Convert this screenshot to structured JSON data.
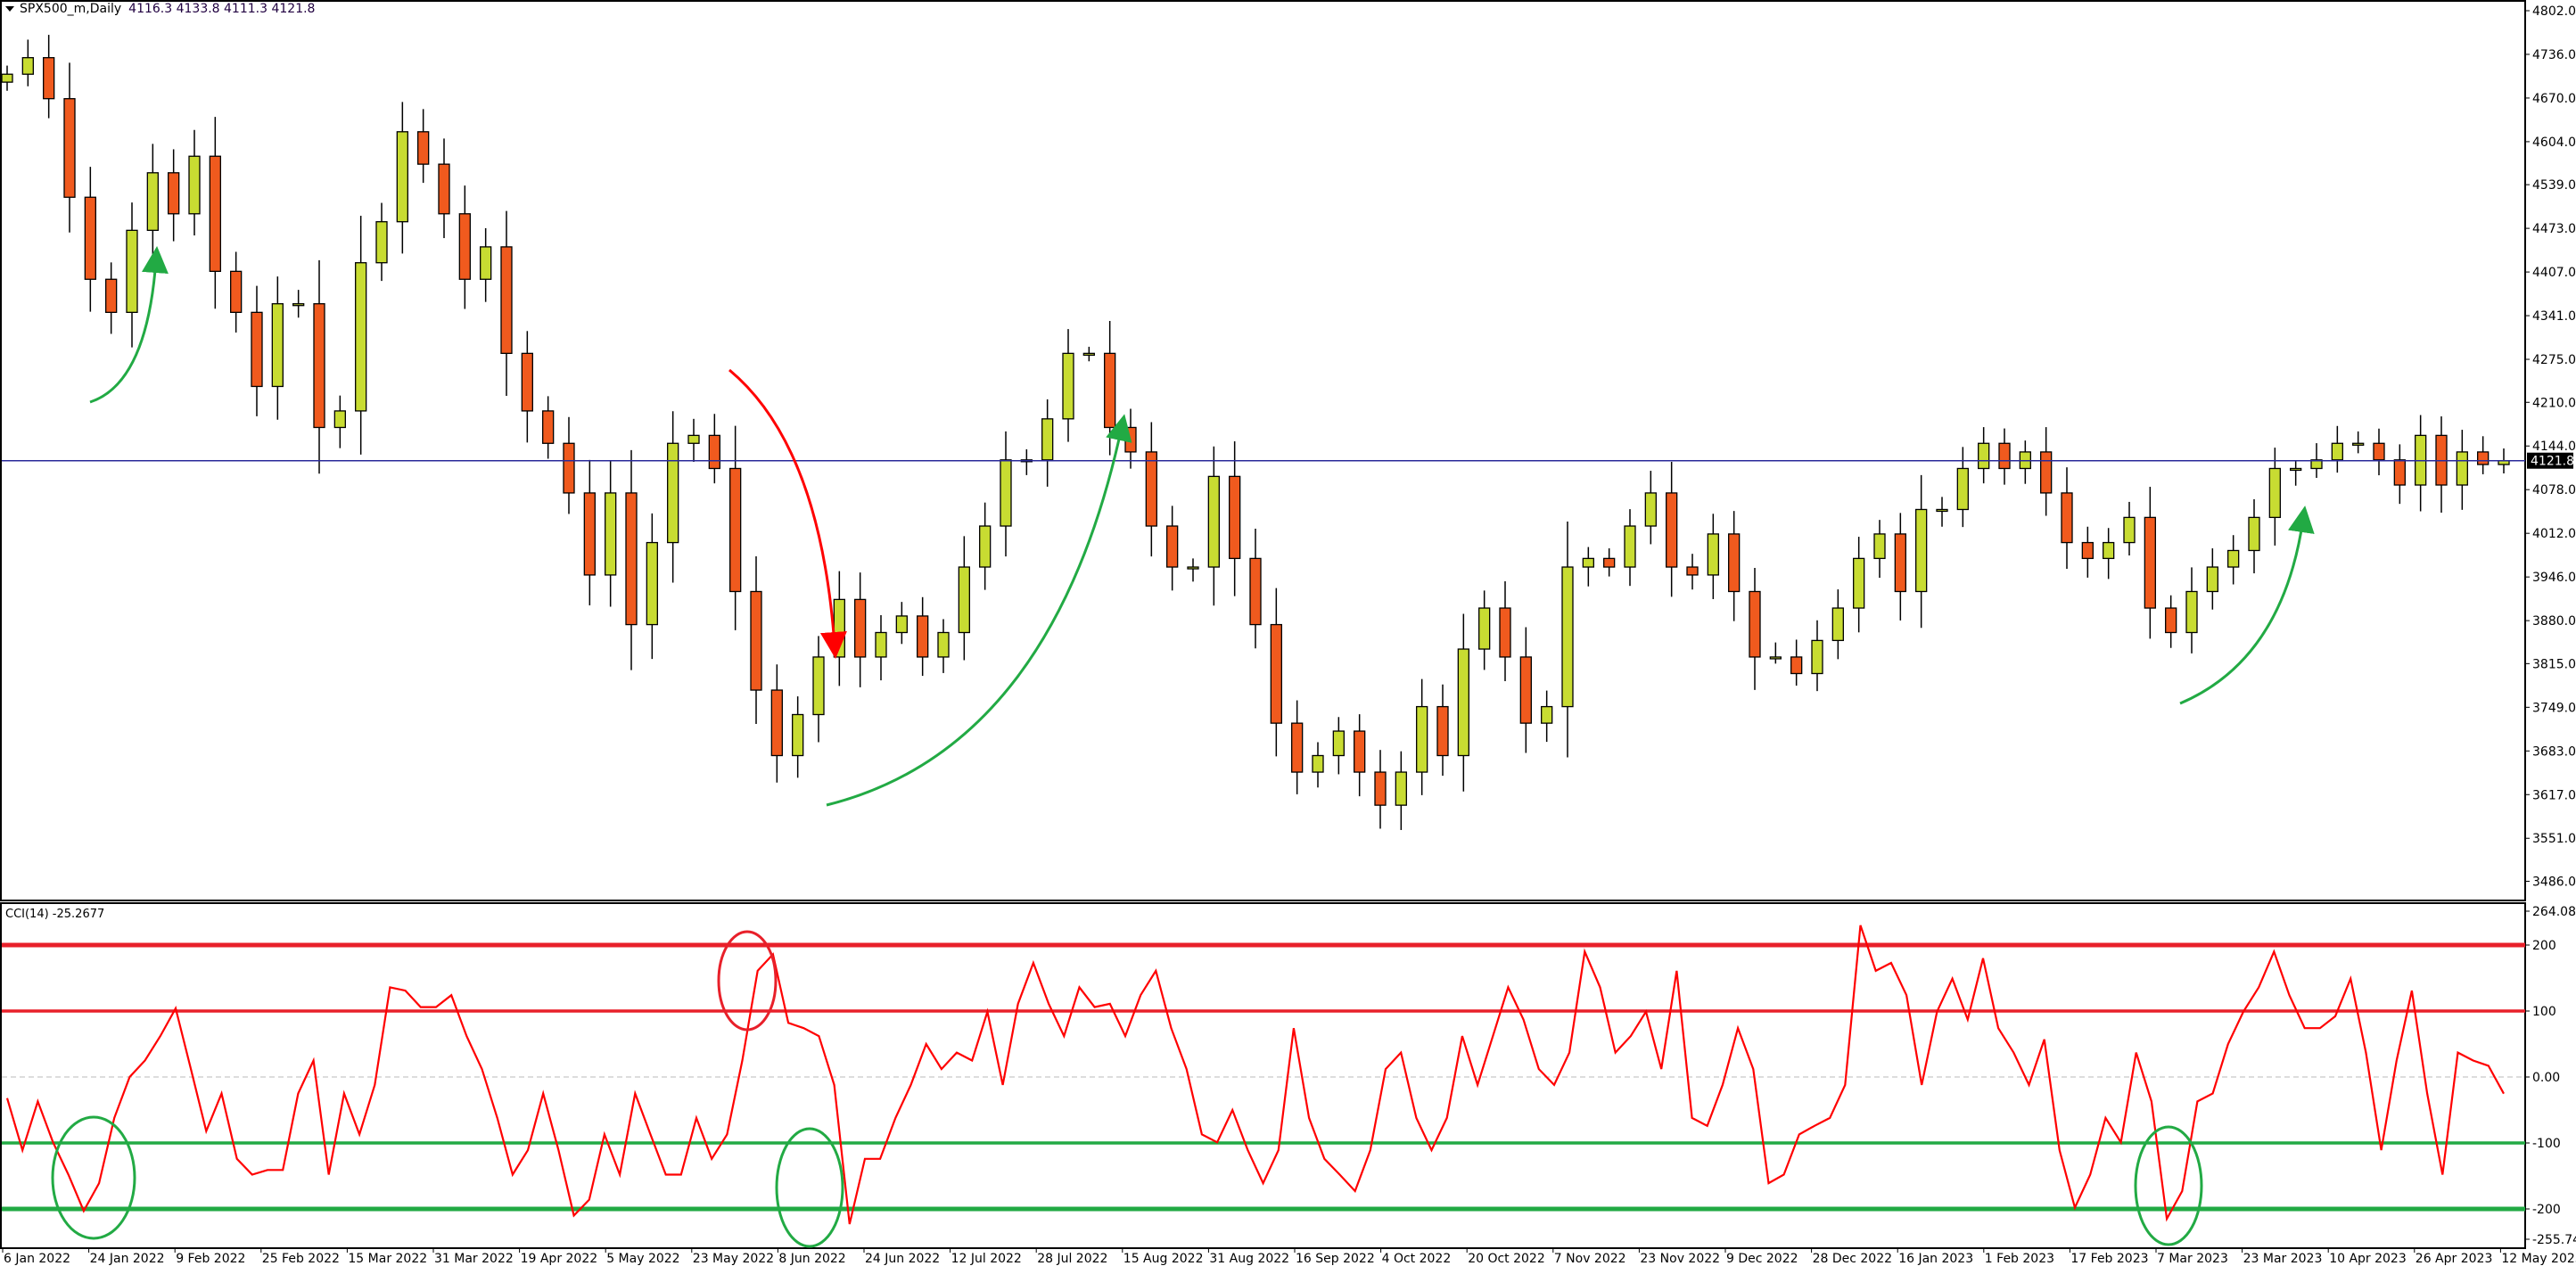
{
  "header": {
    "symbol": "SPX500_m,Daily",
    "ohlc": "4116.3 4133.8 4111.3 4121.8"
  },
  "indicator": {
    "label": "CCI(14) -25.2677"
  },
  "colors": {
    "bull": "#c8dc32",
    "bear": "#f05a1e",
    "price_line": "#2a2a9a",
    "cci": "#ff0000",
    "overbought": "#e8202a",
    "oversold": "#22aa44",
    "arrow_red": "#ff0000",
    "arrow_green": "#22aa44"
  },
  "chart_data": [
    {
      "type": "candlestick",
      "title": "SPX500_m,Daily",
      "current_price": 4121.8,
      "current_price_label": "4121.8",
      "ylim": [
        3456,
        4818
      ],
      "y_ticks": [
        "4802.0",
        "4736.0",
        "4670.0",
        "4604.0",
        "4539.0",
        "4473.0",
        "4407.0",
        "4341.0",
        "4275.0",
        "4210.0",
        "4144.0",
        "4078.0",
        "4012.0",
        "3946.0",
        "3880.0",
        "3815.0",
        "3749.0",
        "3683.0",
        "3617.0",
        "3551.0",
        "3486.0"
      ],
      "x_ticks": [
        "6 Jan 2022",
        "24 Jan 2022",
        "9 Feb 2022",
        "25 Feb 2022",
        "15 Mar 2022",
        "31 Mar 2022",
        "19 Apr 2022",
        "5 May 2022",
        "23 May 2022",
        "8 Jun 2022",
        "24 Jun 2022",
        "12 Jul 2022",
        "28 Jul 2022",
        "15 Aug 2022",
        "31 Aug 2022",
        "16 Sep 2022",
        "4 Oct 2022",
        "20 Oct 2022",
        "7 Nov 2022",
        "23 Nov 2022",
        "9 Dec 2022",
        "28 Dec 2022",
        "16 Jan 2023",
        "1 Feb 2023",
        "17 Feb 2023",
        "7 Mar 2023",
        "23 Mar 2023",
        "10 Apr 2023",
        "26 Apr 2023",
        "12 May 2023"
      ],
      "closes": [
        4706,
        4731,
        4669,
        4520,
        4396,
        4346,
        4470,
        4557,
        4495,
        4582,
        4408,
        4346,
        4234,
        4359,
        4359,
        4172,
        4197,
        4421,
        4483,
        4619,
        4570,
        4495,
        4396,
        4445,
        4284,
        4197,
        4148,
        4073,
        3949,
        4073,
        3874,
        3998,
        4148,
        4160,
        4110,
        3924,
        3775,
        3676,
        3738,
        3825,
        3912,
        3825,
        3862,
        3887,
        3825,
        3862,
        3961,
        4023,
        4123,
        4123,
        4185,
        4284,
        4284,
        4172,
        4135,
        4023,
        3961,
        3961,
        4098,
        3974,
        3874,
        3725,
        3651,
        3676,
        3713,
        3651,
        3601,
        3651,
        3750,
        3676,
        3837,
        3899,
        3825,
        3725,
        3750,
        3961,
        3974,
        3961,
        4023,
        4073,
        3961,
        3949,
        4011,
        3924,
        3825,
        3825,
        3800,
        3850,
        3899,
        3974,
        4011,
        3924,
        4048,
        4048,
        4110,
        4148,
        4110,
        4135,
        4073,
        3998,
        3974,
        3998,
        4036,
        3899,
        3862,
        3924,
        3961,
        3986,
        4036,
        4110,
        4110,
        4123,
        4148,
        4148,
        4123,
        4085,
        4160,
        4085,
        4135,
        4116,
        4121.8
      ]
    },
    {
      "type": "line",
      "title": "CCI(14) -25.2677",
      "ylim": [
        -255.7472,
        264.0853
      ],
      "y_ticks": [
        "264.0853",
        "200",
        "100",
        "0.00",
        "-100",
        "-200",
        "-255.7472"
      ],
      "levels": [
        200,
        100,
        -100,
        -200
      ],
      "values": [
        -32,
        -111,
        -37,
        -99,
        -148,
        -203,
        -161,
        -62,
        0,
        25,
        62,
        104,
        12,
        -82,
        -25,
        -124,
        -148,
        -141,
        -141,
        -25,
        25,
        -148,
        -25,
        -87,
        -12,
        136,
        131,
        106,
        106,
        124,
        62,
        12,
        -62,
        -148,
        -111,
        -25,
        -111,
        -210,
        -186,
        -87,
        -148,
        -25,
        -87,
        -148,
        -148,
        -62,
        -124,
        -87,
        25,
        161,
        186,
        82,
        74,
        62,
        -12,
        -223,
        -124,
        -124,
        -62,
        -12,
        50,
        12,
        37,
        25,
        99,
        -12,
        111,
        173,
        111,
        62,
        136,
        106,
        111,
        62,
        124,
        161,
        74,
        12,
        -87,
        -99,
        -50,
        -111,
        -161,
        -111,
        74,
        -62,
        -124,
        -148,
        -173,
        -111,
        12,
        37,
        -62,
        -111,
        -62,
        62,
        -12,
        62,
        136,
        87,
        12,
        -12,
        37,
        190,
        136,
        37,
        62,
        99,
        12,
        161,
        -62,
        -74,
        -12,
        74,
        12,
        -161,
        -148,
        -87,
        -74,
        -62,
        -12,
        230,
        161,
        173,
        124,
        -12,
        99,
        149,
        87,
        180,
        74,
        37,
        -12,
        57,
        -111,
        -198,
        -148,
        -62,
        -99,
        37,
        -37,
        -215,
        -173,
        -37,
        -25,
        50,
        99,
        136,
        190,
        124,
        74,
        74,
        92,
        149,
        37,
        -111,
        25,
        131,
        -25,
        -148,
        37,
        25,
        17,
        -25.2677
      ]
    }
  ]
}
